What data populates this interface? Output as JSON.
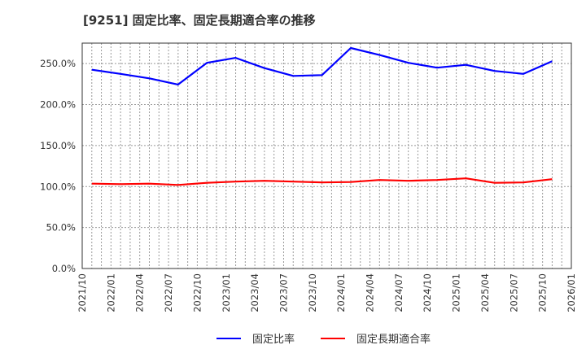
{
  "header": {
    "title": "[9251]  固定比率、固定長期適合率の推移"
  },
  "legend": {
    "items": [
      {
        "label": "固定比率",
        "color": "#0000ff"
      },
      {
        "label": "固定長期適合率",
        "color": "#ff0000"
      }
    ]
  },
  "chart_data": {
    "type": "line",
    "title": "[9251]  固定比率、固定長期適合率の推移",
    "xlabel": "",
    "ylabel": "",
    "ylim": [
      0,
      275
    ],
    "yticks": [
      0,
      50,
      100,
      150,
      200,
      250
    ],
    "ytick_labels": [
      "0.0%",
      "50.0%",
      "100.0%",
      "150.0%",
      "200.0%",
      "250.0%"
    ],
    "xtick_labels": [
      "2021/10",
      "2022/01",
      "2022/04",
      "2022/07",
      "2022/10",
      "2023/01",
      "2023/04",
      "2023/07",
      "2023/10",
      "2024/01",
      "2024/04",
      "2024/07",
      "2024/10",
      "2025/01",
      "2025/04",
      "2025/07",
      "2025/10",
      "2026/01"
    ],
    "xrange": [
      "2021/10",
      "2026/01"
    ],
    "grid": true,
    "legend_position": "bottom",
    "x": [
      "2021/11",
      "2022/02",
      "2022/05",
      "2022/08",
      "2022/11",
      "2023/02",
      "2023/05",
      "2023/08",
      "2023/11",
      "2024/02",
      "2024/05",
      "2024/08",
      "2024/11",
      "2025/02",
      "2025/05",
      "2025/08",
      "2025/11"
    ],
    "series": [
      {
        "name": "固定比率",
        "color": "#0000ff",
        "values": [
          242.5,
          237.5,
          232.0,
          224.5,
          251.0,
          257.0,
          244.5,
          235.0,
          236.0,
          269.0,
          260.5,
          251.0,
          245.0,
          248.5,
          241.0,
          237.5,
          253.0
        ]
      },
      {
        "name": "固定長期適合率",
        "color": "#ff0000",
        "values": [
          103.5,
          103.0,
          103.5,
          102.0,
          104.5,
          106.0,
          107.0,
          106.0,
          105.0,
          105.5,
          108.0,
          107.0,
          108.0,
          110.0,
          104.5,
          105.0,
          109.0
        ]
      }
    ]
  }
}
